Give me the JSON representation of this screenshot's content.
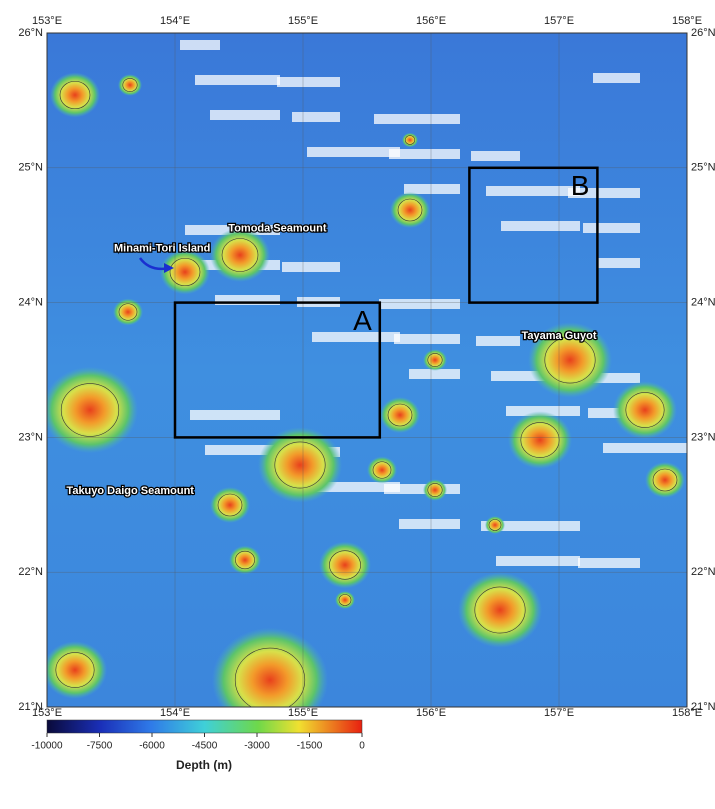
{
  "map": {
    "lon_ticks": [
      {
        "value": 153,
        "label": "153°E"
      },
      {
        "value": 154,
        "label": "154°E"
      },
      {
        "value": 155,
        "label": "155°E"
      },
      {
        "value": 156,
        "label": "156°E"
      },
      {
        "value": 157,
        "label": "157°E"
      },
      {
        "value": 158,
        "label": "158°E"
      }
    ],
    "lat_ticks": [
      {
        "value": 21,
        "label": "21°N"
      },
      {
        "value": 22,
        "label": "22°N"
      },
      {
        "value": 23,
        "label": "23°N"
      },
      {
        "value": 24,
        "label": "24°N"
      },
      {
        "value": 25,
        "label": "25°N"
      },
      {
        "value": 26,
        "label": "26°N"
      }
    ],
    "labels": [
      {
        "text": "Tomoda Seamount",
        "lon": 154.8,
        "lat": 24.55
      },
      {
        "text": "Minami-Tori Island",
        "lon": 153.9,
        "lat": 24.4
      },
      {
        "text": "Tayama Guyot",
        "lon": 157.0,
        "lat": 23.75
      },
      {
        "text": "Takuyo Daigo Seamount",
        "lon": 153.65,
        "lat": 22.6
      }
    ],
    "boxes": [
      {
        "label": "A",
        "lon": [
          154.0,
          155.6
        ],
        "lat": [
          23.0,
          24.0
        ]
      },
      {
        "label": "B",
        "lon": [
          156.3,
          157.3
        ],
        "lat": [
          24.0,
          25.0
        ]
      }
    ]
  },
  "colorbar": {
    "ticks": [
      -10000,
      -7500,
      -6000,
      -4500,
      -3000,
      -1500,
      0
    ],
    "title": "Depth (m)"
  }
}
